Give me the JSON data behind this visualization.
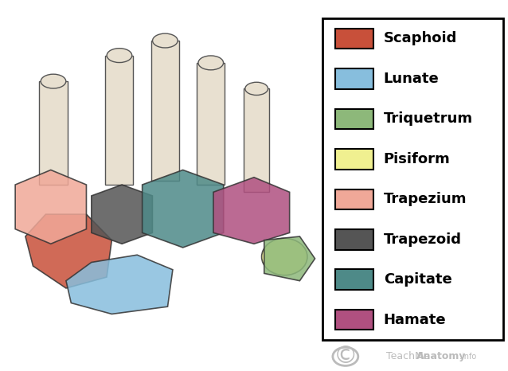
{
  "legend_items": [
    {
      "label": "Scaphoid",
      "color": "#C8503A"
    },
    {
      "label": "Lunate",
      "color": "#87BEDD"
    },
    {
      "label": "Triquetrum",
      "color": "#8DB87A"
    },
    {
      "label": "Pisiform",
      "color": "#F0F090"
    },
    {
      "label": "Trapezium",
      "color": "#F0A898"
    },
    {
      "label": "Trapezoid",
      "color": "#555555"
    },
    {
      "label": "Capitate",
      "color": "#4E8A88"
    },
    {
      "label": "Hamate",
      "color": "#B05080"
    }
  ],
  "watermark_text": "TeachMeAnatomy",
  "watermark_color": "#BBBBBB",
  "background_color": "#FFFFFF",
  "legend_box_color": "#FFFFFF",
  "legend_border_color": "#000000",
  "legend_title_fontsize": 13,
  "legend_fontsize": 13,
  "patch_size": 0.045,
  "fig_width": 6.38,
  "fig_height": 4.66
}
